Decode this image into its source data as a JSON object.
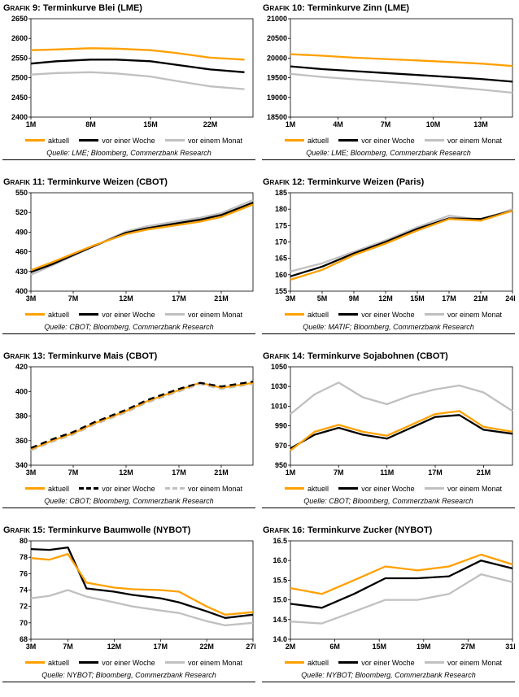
{
  "legend_note": "forward curve charts, Commerzbank Research style",
  "chart_data": [
    {
      "type": "line",
      "label": "Grafik 9:",
      "title": "Terminkurve Blei (LME)",
      "source": "Quelle: LME; Bloomberg, Commerzbank Research",
      "ylim": [
        2400,
        2650
      ],
      "yticks": [
        "2400",
        "2450",
        "2500",
        "2550",
        "2600",
        "2650"
      ],
      "xlim": [
        1,
        27
      ],
      "xticks": [
        {
          "v": 1,
          "label": "1M"
        },
        {
          "v": 8,
          "label": "8M"
        },
        {
          "v": 15,
          "label": "15M"
        },
        {
          "v": 22,
          "label": "22M"
        }
      ],
      "x": [
        1,
        4,
        8,
        11,
        15,
        18,
        22,
        26
      ],
      "series": [
        {
          "name": "aktuell",
          "color": "#FFA000",
          "dash": false,
          "values": [
            2570,
            2572,
            2575,
            2574,
            2570,
            2563,
            2551,
            2546
          ]
        },
        {
          "name": "vor einer Woche",
          "color": "#000000",
          "dash": false,
          "values": [
            2536,
            2542,
            2546,
            2546,
            2542,
            2533,
            2521,
            2514
          ]
        },
        {
          "name": "vor einem Monat",
          "color": "#C0C0C0",
          "dash": false,
          "values": [
            2508,
            2512,
            2514,
            2511,
            2503,
            2492,
            2478,
            2471
          ]
        }
      ]
    },
    {
      "type": "line",
      "label": "Grafik 10:",
      "title": "Terminkurve Zinn (LME)",
      "source": "Quelle: LME; Bloomberg, Commerzbank Research",
      "ylim": [
        18500,
        21000
      ],
      "yticks": [
        "18500",
        "19000",
        "19500",
        "20000",
        "20500",
        "21000"
      ],
      "xlim": [
        1,
        15
      ],
      "xticks": [
        {
          "v": 1,
          "label": "1M"
        },
        {
          "v": 4,
          "label": "4M"
        },
        {
          "v": 7,
          "label": "7M"
        },
        {
          "v": 10,
          "label": "10M"
        },
        {
          "v": 13,
          "label": "13M"
        }
      ],
      "x": [
        1,
        3,
        5,
        7,
        9,
        11,
        13,
        15
      ],
      "series": [
        {
          "name": "aktuell",
          "color": "#FFA000",
          "dash": false,
          "values": [
            20100,
            20060,
            20010,
            19975,
            19940,
            19900,
            19860,
            19800
          ]
        },
        {
          "name": "vor einer Woche",
          "color": "#000000",
          "dash": false,
          "values": [
            19790,
            19720,
            19670,
            19620,
            19570,
            19520,
            19470,
            19400
          ]
        },
        {
          "name": "vor einem Monat",
          "color": "#C0C0C0",
          "dash": false,
          "values": [
            19600,
            19520,
            19460,
            19400,
            19340,
            19270,
            19200,
            19120
          ]
        }
      ]
    },
    {
      "type": "line",
      "label": "Grafik 11:",
      "title": "Terminkurve Weizen (CBOT)",
      "source": "Quelle: CBOT; Bloomberg, Commerzbank Research",
      "ylim": [
        400,
        550
      ],
      "yticks": [
        "400",
        "430",
        "460",
        "490",
        "520",
        "550"
      ],
      "xlim": [
        3,
        24
      ],
      "xticks": [
        {
          "v": 3,
          "label": "3M"
        },
        {
          "v": 7,
          "label": "7M"
        },
        {
          "v": 12,
          "label": "12M"
        },
        {
          "v": 17,
          "label": "17M"
        },
        {
          "v": 21,
          "label": "21M"
        }
      ],
      "x": [
        3,
        5,
        7,
        9,
        12,
        14,
        17,
        19,
        21,
        24
      ],
      "series": [
        {
          "name": "aktuell",
          "color": "#FFA000",
          "dash": false,
          "values": [
            432,
            444,
            457,
            470,
            487,
            494,
            501,
            506,
            513,
            532
          ]
        },
        {
          "name": "vor einer Woche",
          "color": "#000000",
          "dash": false,
          "values": [
            429,
            441,
            455,
            469,
            489,
            496,
            504,
            509,
            516,
            535
          ]
        },
        {
          "name": "vor einem Monat",
          "color": "#C0C0C0",
          "dash": false,
          "values": [
            425,
            439,
            454,
            469,
            491,
            499,
            507,
            512,
            519,
            539
          ]
        }
      ]
    },
    {
      "type": "line",
      "label": "Grafik 12:",
      "title": "Terminkurve Weizen (Paris)",
      "source": "Quelle: MATIF; Bloomberg, Commerzbank Research",
      "ylim": [
        155,
        185
      ],
      "yticks": [
        "155",
        "160",
        "165",
        "170",
        "175",
        "180",
        "185"
      ],
      "xlim": [
        3,
        24
      ],
      "xticks": [
        {
          "v": 3,
          "label": "3M"
        },
        {
          "v": 6,
          "label": "5M"
        },
        {
          "v": 9,
          "label": "9M"
        },
        {
          "v": 12,
          "label": "12M"
        },
        {
          "v": 15,
          "label": "15M"
        },
        {
          "v": 18,
          "label": "17M"
        },
        {
          "v": 21,
          "label": "21M"
        },
        {
          "v": 24,
          "label": "24M"
        }
      ],
      "x": [
        3,
        6,
        9,
        12,
        15,
        18,
        21,
        24
      ],
      "series": [
        {
          "name": "aktuell",
          "color": "#FFA000",
          "dash": false,
          "values": [
            158.5,
            161.5,
            166,
            169.5,
            173.5,
            177,
            176.5,
            179.5
          ]
        },
        {
          "name": "vor einer Woche",
          "color": "#000000",
          "dash": false,
          "values": [
            159.5,
            162.5,
            166.5,
            170,
            174,
            177.2,
            177,
            179.5
          ]
        },
        {
          "name": "vor einem Monat",
          "color": "#C0C0C0",
          "dash": false,
          "values": [
            161,
            163.5,
            167,
            170.5,
            174.5,
            178,
            176.8,
            180
          ]
        }
      ]
    },
    {
      "type": "line",
      "label": "Grafik 13:",
      "title": "Terminkurve Mais (CBOT)",
      "source": "Quelle: CBOT; Bloomberg, Commerzbank Research",
      "ylim": [
        340,
        420
      ],
      "yticks": [
        "340",
        "360",
        "380",
        "400",
        "420"
      ],
      "xlim": [
        3,
        24
      ],
      "xticks": [
        {
          "v": 3,
          "label": "3M"
        },
        {
          "v": 7,
          "label": "7M"
        },
        {
          "v": 12,
          "label": "12M"
        },
        {
          "v": 17,
          "label": "17M"
        },
        {
          "v": 21,
          "label": "21M"
        }
      ],
      "x": [
        3,
        5,
        7,
        9,
        12,
        14,
        17,
        19,
        21,
        24
      ],
      "draw_order": [
        2,
        0,
        1
      ],
      "series": [
        {
          "name": "aktuell",
          "color": "#FFA000",
          "dash": false,
          "values": [
            353,
            360,
            366,
            374,
            384,
            392,
            401,
            407,
            403,
            407
          ]
        },
        {
          "name": "vor einer Woche",
          "color": "#000000",
          "dash": true,
          "values": [
            354,
            361,
            367,
            375,
            385,
            393,
            402,
            407,
            404,
            408
          ]
        },
        {
          "name": "vor einem Monat",
          "color": "#C0C0C0",
          "dash": true,
          "values": [
            352,
            359,
            365,
            373,
            383,
            391,
            400,
            406,
            402,
            406
          ]
        }
      ]
    },
    {
      "type": "line",
      "label": "Grafik 14:",
      "title": "Terminkurve Sojabohnen (CBOT)",
      "source": "Quelle: CBOT; Bloomberg, Commerzbank Research",
      "ylim": [
        950,
        1050
      ],
      "yticks": [
        "950",
        "970",
        "990",
        "1010",
        "1030",
        "1050"
      ],
      "xlim": [
        1,
        24
      ],
      "xticks": [
        {
          "v": 1,
          "label": "1M"
        },
        {
          "v": 6,
          "label": "7M"
        },
        {
          "v": 11,
          "label": "11M"
        },
        {
          "v": 16,
          "label": "17M"
        },
        {
          "v": 21,
          "label": "21M"
        }
      ],
      "x": [
        1,
        3.5,
        6,
        8.5,
        11,
        13.5,
        16,
        18.5,
        21,
        24
      ],
      "series": [
        {
          "name": "aktuell",
          "color": "#FFA000",
          "dash": false,
          "values": [
            965,
            984,
            991,
            984,
            980,
            991,
            1002,
            1005,
            989,
            984
          ]
        },
        {
          "name": "vor einer Woche",
          "color": "#000000",
          "dash": false,
          "values": [
            967,
            981,
            988,
            981,
            977,
            988,
            999,
            1001,
            986,
            982
          ]
        },
        {
          "name": "vor einem Monat",
          "color": "#C0C0C0",
          "dash": false,
          "values": [
            1002,
            1022,
            1034,
            1019,
            1012,
            1021,
            1027,
            1031,
            1024,
            1005
          ]
        }
      ]
    },
    {
      "type": "line",
      "label": "Grafik 15:",
      "title": "Terminkurve Baumwolle (NYBOT)",
      "source": "Quelle: NYBOT; Bloomberg, Commerzbank Research",
      "ylim": [
        68,
        80
      ],
      "yticks": [
        "68",
        "70",
        "72",
        "74",
        "76",
        "78",
        "80"
      ],
      "xlim": [
        3,
        27
      ],
      "xticks": [
        {
          "v": 3,
          "label": "3M"
        },
        {
          "v": 7,
          "label": "7M"
        },
        {
          "v": 12,
          "label": "12M"
        },
        {
          "v": 17,
          "label": "17M"
        },
        {
          "v": 22,
          "label": "22M"
        },
        {
          "v": 27,
          "label": "27M"
        }
      ],
      "x": [
        3,
        5,
        7,
        9,
        12,
        14,
        17,
        19,
        22,
        24,
        27
      ],
      "series": [
        {
          "name": "aktuell",
          "color": "#FFA000",
          "dash": false,
          "values": [
            77.9,
            77.7,
            78.4,
            74.9,
            74.3,
            74.1,
            74.0,
            73.8,
            72.0,
            71.0,
            71.3
          ]
        },
        {
          "name": "vor einer Woche",
          "color": "#000000",
          "dash": false,
          "values": [
            79.0,
            78.9,
            79.2,
            74.2,
            73.8,
            73.4,
            73.0,
            72.5,
            71.4,
            70.6,
            71.0
          ]
        },
        {
          "name": "vor einem Monat",
          "color": "#C0C0C0",
          "dash": false,
          "values": [
            73.0,
            73.3,
            74.0,
            73.2,
            72.5,
            72.0,
            71.5,
            71.2,
            70.2,
            69.7,
            70.0
          ]
        }
      ]
    },
    {
      "type": "line",
      "label": "Grafik 16:",
      "title": "Terminkurve Zucker (NYBOT)",
      "source": "Quelle: NYBOT; Bloomberg, Commerzbank Research",
      "ylim": [
        14.0,
        16.5
      ],
      "yticks": [
        "14.0",
        "14.5",
        "15.0",
        "15.5",
        "16.0",
        "16.5"
      ],
      "xlim": [
        2,
        31
      ],
      "xticks": [
        {
          "v": 2,
          "label": "2M"
        },
        {
          "v": 7.8,
          "label": "6M"
        },
        {
          "v": 13.6,
          "label": "15M"
        },
        {
          "v": 19.4,
          "label": "19M"
        },
        {
          "v": 25.2,
          "label": "27M"
        },
        {
          "v": 31,
          "label": "31M"
        }
      ],
      "x": [
        2,
        6.1,
        10.3,
        14.4,
        18.6,
        22.7,
        26.9,
        31
      ],
      "series": [
        {
          "name": "aktuell",
          "color": "#FFA000",
          "dash": false,
          "values": [
            15.3,
            15.15,
            15.5,
            15.85,
            15.75,
            15.85,
            16.15,
            15.9
          ]
        },
        {
          "name": "vor einer Woche",
          "color": "#000000",
          "dash": false,
          "values": [
            14.9,
            14.8,
            15.15,
            15.55,
            15.55,
            15.6,
            16.0,
            15.8
          ]
        },
        {
          "name": "vor einem Monat",
          "color": "#C0C0C0",
          "dash": false,
          "values": [
            14.45,
            14.4,
            14.7,
            15.0,
            15.0,
            15.15,
            15.65,
            15.45
          ]
        }
      ]
    }
  ]
}
